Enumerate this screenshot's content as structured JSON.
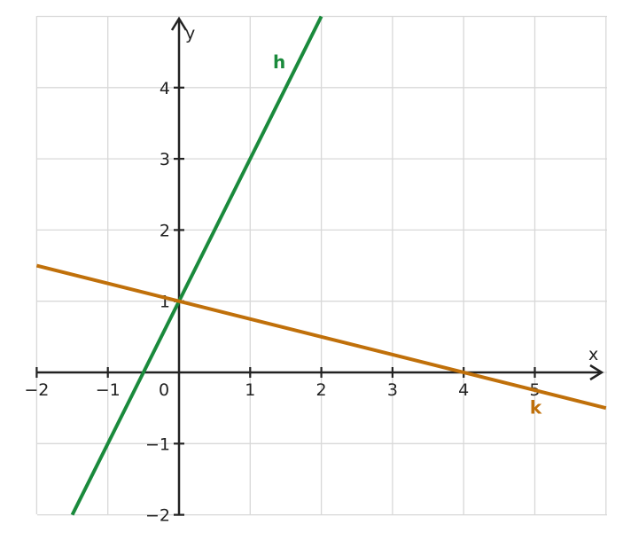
{
  "chart_data": {
    "type": "line",
    "xlabel": "x",
    "ylabel": "y",
    "xlim": [
      -2,
      6
    ],
    "ylim": [
      -2,
      5
    ],
    "grid": true,
    "x_ticks": [
      -2,
      -1,
      0,
      1,
      2,
      3,
      4,
      5
    ],
    "y_ticks": [
      -2,
      -1,
      1,
      2,
      3,
      4
    ],
    "x_tick_labels": [
      "−2",
      "−1",
      "0",
      "1",
      "2",
      "3",
      "4",
      "5"
    ],
    "y_tick_labels": [
      "−2",
      "−1",
      "1",
      "2",
      "3",
      "4"
    ],
    "series": [
      {
        "name": "h",
        "color": "#1a8a3c",
        "x": [
          -1.5,
          2
        ],
        "y": [
          -2,
          5
        ]
      },
      {
        "name": "k",
        "color": "#c0700a",
        "x": [
          -2,
          6
        ],
        "y": [
          1.5,
          -0.5
        ]
      }
    ]
  }
}
